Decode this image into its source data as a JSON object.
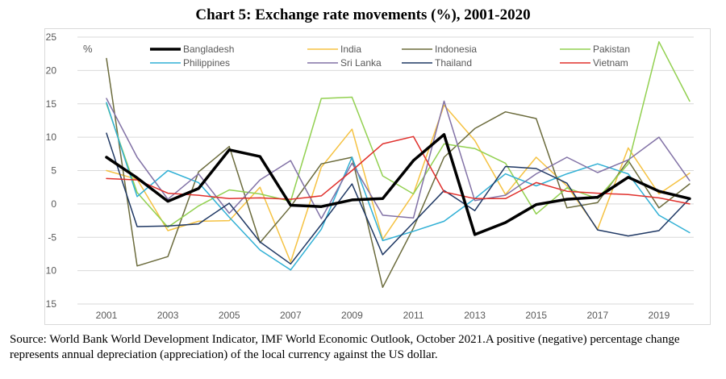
{
  "title": "Chart 5: Exchange rate movements (%), 2001-2020",
  "source": "Source: World Bank World Development Indicator, IMF World Economic Outlook, October 2021.A positive (negative) percentage change represents annual depreciation (appreciation) of the local currency against the US dollar.",
  "chart_data": {
    "type": "line",
    "title": "Chart 5: Exchange rate movements (%), 2001-2020",
    "unit_label": "%",
    "x": [
      2001,
      2002,
      2003,
      2004,
      2005,
      2006,
      2007,
      2008,
      2009,
      2010,
      2011,
      2012,
      2013,
      2014,
      2015,
      2016,
      2017,
      2018,
      2019,
      2020
    ],
    "x_tick_labels": [
      "2001",
      "2003",
      "2005",
      "2007",
      "2009",
      "2011",
      "2013",
      "2015",
      "2017",
      "2019"
    ],
    "y_tick_labels": [
      "25",
      "20",
      "15",
      "10",
      "5",
      "0",
      "-5",
      "-10",
      "-15"
    ],
    "ylim": [
      -15,
      25
    ],
    "grid": true,
    "legend_position": "top",
    "series": [
      {
        "name": "Bangladesh",
        "color": "#000000",
        "width": 3.5,
        "values": [
          7.0,
          3.9,
          0.4,
          2.3,
          8.1,
          7.1,
          -0.2,
          -0.4,
          0.6,
          0.8,
          6.5,
          10.4,
          -4.6,
          -2.8,
          -0.1,
          0.7,
          1.0,
          4.0,
          1.9,
          0.8
        ]
      },
      {
        "name": "India",
        "color": "#f5c242",
        "width": 1.5,
        "values": [
          5.0,
          3.7,
          -4.0,
          -2.6,
          -2.5,
          2.5,
          -8.7,
          5.5,
          11.2,
          -5.3,
          1.5,
          14.8,
          9.5,
          1.4,
          7.0,
          2.7,
          -3.8,
          8.4,
          1.5,
          4.6
        ]
      },
      {
        "name": "Indonesia",
        "color": "#6b6b3c",
        "width": 1.5,
        "values": [
          21.8,
          -9.3,
          -7.9,
          4.8,
          8.6,
          -5.8,
          -0.4,
          6.0,
          7.0,
          -12.5,
          -3.6,
          7.0,
          11.3,
          13.8,
          12.8,
          -0.6,
          0.2,
          6.5,
          -0.6,
          3.0
        ]
      },
      {
        "name": "Pakistan",
        "color": "#92d050",
        "width": 1.5,
        "values": [
          15.0,
          1.7,
          -3.5,
          -0.3,
          2.1,
          1.5,
          0.4,
          15.8,
          16.0,
          4.2,
          1.5,
          9.0,
          8.3,
          6.1,
          -1.5,
          2.4,
          0.8,
          6.0,
          24.3,
          15.4
        ]
      },
      {
        "name": "Philippines",
        "color": "#31b0d5",
        "width": 1.5,
        "values": [
          15.2,
          1.1,
          5.0,
          3.2,
          -2.0,
          -6.9,
          -9.9,
          -3.8,
          7.0,
          -5.5,
          -4.1,
          -2.6,
          0.8,
          4.5,
          2.7,
          4.5,
          6.0,
          4.5,
          -1.7,
          -4.3
        ]
      },
      {
        "name": "Sri Lanka",
        "color": "#8272a6",
        "width": 1.5,
        "values": [
          15.8,
          7.0,
          0.7,
          4.5,
          -1.4,
          3.6,
          6.5,
          -2.2,
          6.1,
          -1.7,
          -2.1,
          15.4,
          0.5,
          1.3,
          4.5,
          7.0,
          4.7,
          6.6,
          10.0,
          3.5
        ]
      },
      {
        "name": "Thailand",
        "color": "#1f3864",
        "width": 1.5,
        "values": [
          10.6,
          -3.4,
          -3.3,
          -3.0,
          0.1,
          -5.7,
          -9.0,
          -3.1,
          3.0,
          -7.6,
          -2.8,
          2.0,
          -1.0,
          5.6,
          5.3,
          3.1,
          -3.9,
          -4.8,
          -4.0,
          0.8
        ]
      },
      {
        "name": "Vietnam",
        "color": "#e0302c",
        "width": 1.5,
        "values": [
          3.8,
          3.6,
          1.6,
          1.3,
          0.8,
          0.9,
          0.7,
          1.2,
          5.0,
          9.0,
          10.1,
          1.8,
          0.8,
          0.8,
          3.2,
          1.9,
          1.6,
          1.4,
          0.9,
          0.0
        ]
      }
    ]
  }
}
